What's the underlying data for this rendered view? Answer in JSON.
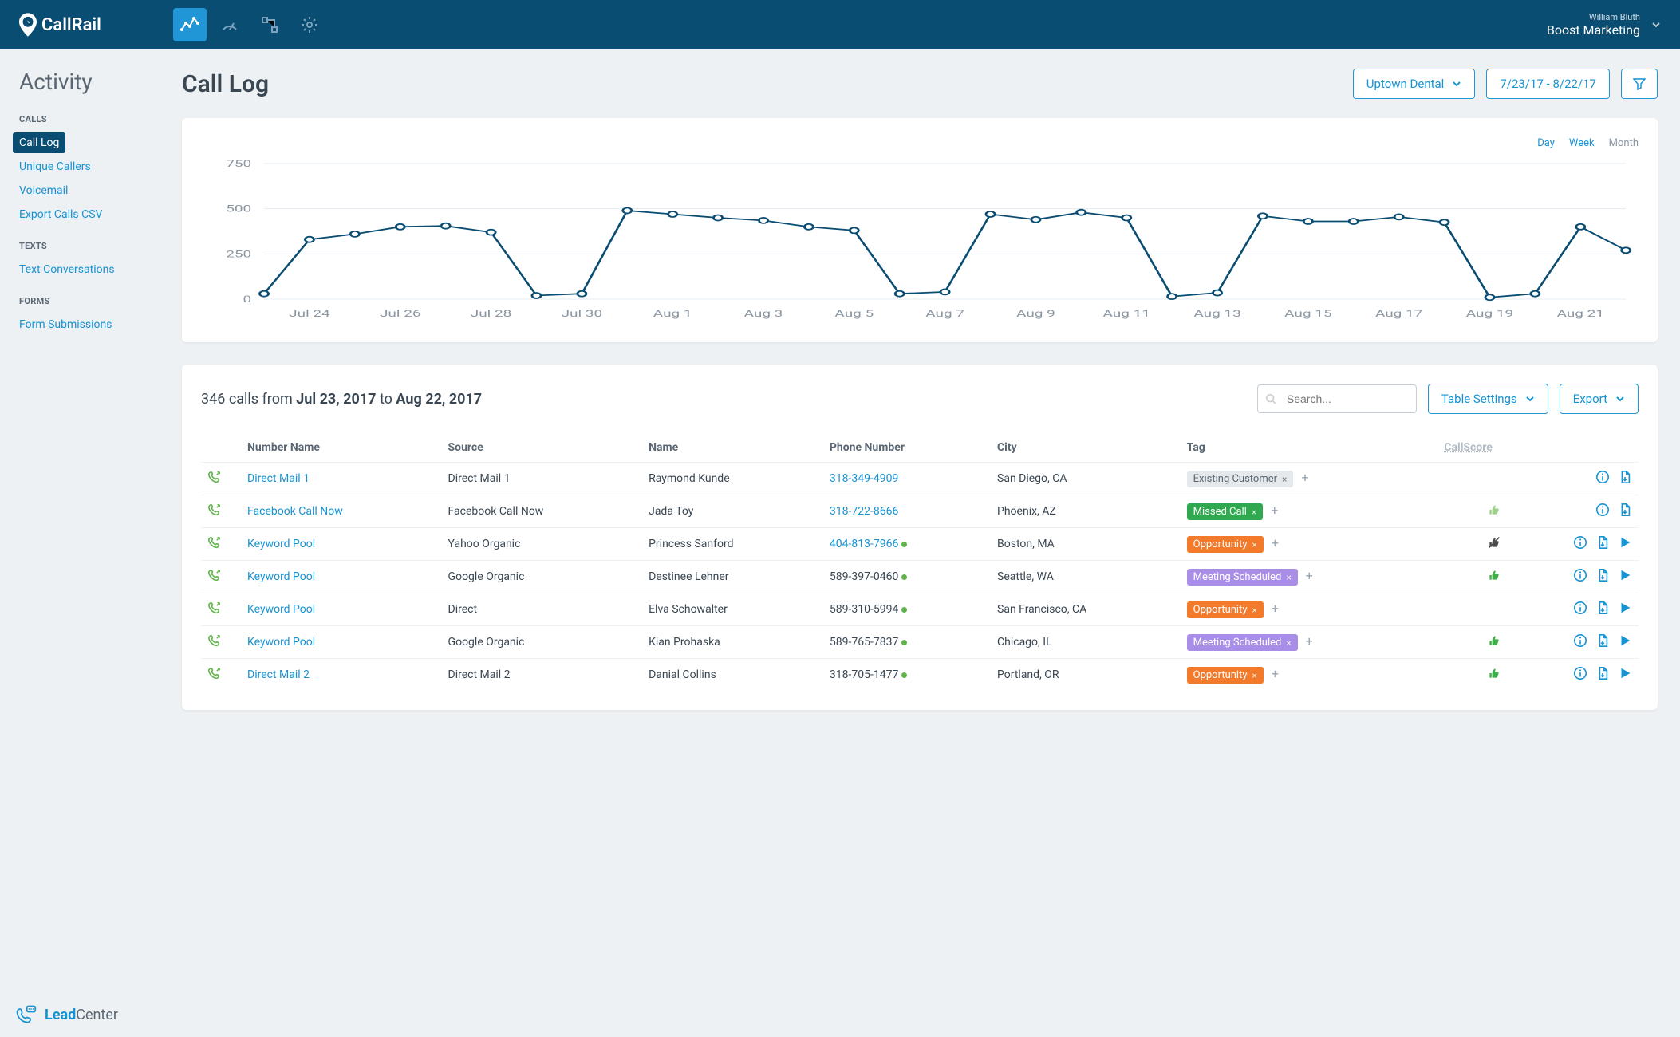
{
  "brand": "CallRail",
  "user": {
    "name": "William Bluth",
    "company": "Boost Marketing"
  },
  "sidebar": {
    "title": "Activity",
    "sections": [
      {
        "title": "CALLS",
        "items": [
          {
            "label": "Call Log",
            "active": true
          },
          {
            "label": "Unique Callers"
          },
          {
            "label": "Voicemail"
          },
          {
            "label": "Export Calls CSV"
          }
        ]
      },
      {
        "title": "TEXTS",
        "items": [
          {
            "label": "Text Conversations"
          }
        ]
      },
      {
        "title": "FORMS",
        "items": [
          {
            "label": "Form Submissions"
          }
        ]
      }
    ],
    "leadcenter_prefix": "Lead",
    "leadcenter_suffix": "Center"
  },
  "page": {
    "title": "Call Log",
    "account_dropdown": "Uptown Dental",
    "date_range": "7/23/17 - 8/22/17"
  },
  "chart": {
    "colors": {
      "line": "#0a4d73",
      "marker_fill": "#ffffff",
      "grid": "#e6ecf1",
      "axis_text": "#8a96a2"
    },
    "tabs": [
      "Day",
      "Week",
      "Month"
    ],
    "active_tab": 0,
    "y_ticks": [
      0,
      250,
      500,
      750
    ],
    "x_labels": [
      "Jul 24",
      "Jul 26",
      "Jul 28",
      "Jul 30",
      "Aug 1",
      "Aug 3",
      "Aug 5",
      "Aug 7",
      "Aug 9",
      "Aug 11",
      "Aug 13",
      "Aug 15",
      "Aug 17",
      "Aug 19",
      "Aug 21"
    ],
    "values": [
      30,
      330,
      360,
      400,
      405,
      370,
      20,
      30,
      490,
      470,
      450,
      435,
      400,
      380,
      30,
      40,
      470,
      440,
      480,
      450,
      15,
      35,
      460,
      430,
      430,
      455,
      425,
      10,
      30,
      400,
      270
    ]
  },
  "table": {
    "summary_prefix": "346 calls from ",
    "summary_from": "Jul 23, 2017",
    "summary_mid": " to ",
    "summary_to": "Aug 22, 2017",
    "search_placeholder": "Search...",
    "settings_label": "Table Settings",
    "export_label": "Export",
    "columns": [
      "Number Name",
      "Source",
      "Name",
      "Phone Number",
      "City",
      "Tag",
      "CallScore"
    ],
    "tag_colors": {
      "Existing Customer": "#e5e9ec",
      "Missed Call": "#2fa84f",
      "Opportunity": "#f27a2a",
      "Meeting Scheduled": "#a98ee8"
    },
    "tag_text_colors": {
      "Existing Customer": "#5a6773"
    },
    "rows": [
      {
        "number_name": "Direct Mail 1",
        "source": "Direct Mail 1",
        "name": "Raymond Kunde",
        "phone": "318-349-4909",
        "phone_link": true,
        "dot": false,
        "city": "San Diego, CA",
        "tag": "Existing Customer",
        "score": "none",
        "play": false
      },
      {
        "number_name": "Facebook Call Now",
        "source": "Facebook Call Now",
        "name": "Jada Toy",
        "phone": "318-722-8666",
        "phone_link": true,
        "dot": false,
        "city": "Phoenix, AZ",
        "tag": "Missed Call",
        "score": "light",
        "play": false
      },
      {
        "number_name": "Keyword Pool",
        "source": "Yahoo Organic",
        "name": "Princess Sanford",
        "phone": "404-813-7966",
        "phone_link": true,
        "dot": true,
        "city": "Boston, MA",
        "tag": "Opportunity",
        "score": "muted",
        "play": true
      },
      {
        "number_name": "Keyword Pool",
        "source": "Google Organic",
        "name": "Destinee Lehner",
        "phone": "589-397-0460",
        "phone_link": false,
        "dot": true,
        "city": "Seattle, WA",
        "tag": "Meeting Scheduled",
        "score": "solid",
        "play": true
      },
      {
        "number_name": "Keyword Pool",
        "source": "Direct",
        "name": "Elva Schowalter",
        "phone": "589-310-5994",
        "phone_link": false,
        "dot": true,
        "city": "San Francisco, CA",
        "tag": "Opportunity",
        "score": "none",
        "play": true
      },
      {
        "number_name": "Keyword Pool",
        "source": "Google Organic",
        "name": "Kian Prohaska",
        "phone": "589-765-7837",
        "phone_link": false,
        "dot": true,
        "city": "Chicago, IL",
        "tag": "Meeting Scheduled",
        "score": "solid",
        "play": true
      },
      {
        "number_name": "Direct Mail 2",
        "source": "Direct Mail 2",
        "name": "Danial Collins",
        "phone": "318-705-1477",
        "phone_link": false,
        "dot": true,
        "city": "Portland, OR",
        "tag": "Opportunity",
        "score": "solid",
        "play": true
      }
    ]
  }
}
